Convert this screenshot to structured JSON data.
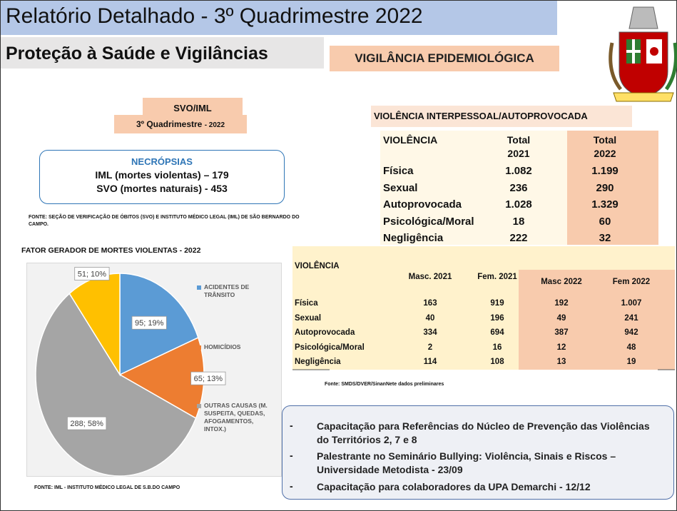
{
  "header": {
    "title": "Relatório Detalhado - 3º Quadrimestre 2022",
    "subtitle": "Proteção à Saúde e Vigilâncias",
    "section": "VIGILÂNCIA EPIDEMIOLÓGICA"
  },
  "svo": {
    "label": "SVO/IML",
    "period": "3º Quadrimestre",
    "year": "- 2022",
    "necropsias": {
      "title": "NECRÓPSIAS",
      "lines": [
        "IML  (mortes violentas) – 179",
        "SVO (mortes naturais) - 453"
      ]
    },
    "source": "FONTE: SEÇÃO DE VERIFICAÇÃO DE ÓBITOS (SVO) E INSTITUTO MÉDICO LEGAL (IML) DE SÃO BERNARDO DO CAMPO."
  },
  "chart_data": {
    "type": "pie",
    "title": "FATOR GERADOR DE MORTES VIOLENTAS - 2022",
    "categories": [
      "ACIDENTES DE TRÂNSITO",
      "HOMICÍDIOS",
      "OUTRAS CAUSAS (M. SUSPEITA, QUEDAS, AFOGAMENTOS, INTOX.)",
      null
    ],
    "values": [
      95,
      65,
      288,
      51
    ],
    "value_labels": [
      "95; 19%",
      "65; 13%",
      "288; 58%",
      "51; 10%"
    ],
    "colors": [
      "#5b9bd5",
      "#ed7d31",
      "#a5a5a5",
      "#ffc000"
    ],
    "source": "FONTE: IML - INSTITUTO MÉDICO LEGAL DE S.B.DO CAMPO"
  },
  "table1": {
    "title": "VIOLÊNCIA INTERPESSOAL/AUTOPROVOCADA",
    "headers": [
      "VIOLÊNCIA",
      [
        "Total",
        "2021"
      ],
      [
        "Total",
        "2022"
      ]
    ],
    "rows": [
      [
        "Física",
        "1.082",
        "1.199"
      ],
      [
        "Sexual",
        "236",
        "290"
      ],
      [
        "Autoprovocada",
        "1.028",
        "1.329"
      ],
      [
        "Psicológica/Moral",
        "18",
        "60"
      ],
      [
        "Negligência",
        "222",
        "32"
      ]
    ]
  },
  "table2": {
    "headers": [
      "VIOLÊNCIA",
      "Masc. 2021",
      "Fem.  2021",
      "Masc 2022",
      "Fem 2022"
    ],
    "rows": [
      [
        "Física",
        "163",
        "919",
        "192",
        "1.007"
      ],
      [
        "Sexual",
        "40",
        "196",
        "49",
        "241"
      ],
      [
        "Autoprovocada",
        "334",
        "694",
        "387",
        "942"
      ],
      [
        "Psicológica/Moral",
        "2",
        "16",
        "12",
        "48"
      ],
      [
        "Negligência",
        "114",
        "108",
        "13",
        "19"
      ]
    ],
    "source": "Fonte: SMDS/DVER/SinanNete dados preliminares"
  },
  "activities": [
    "Capacitação para Referências do Núcleo de Prevenção das Violências do Territórios 2, 7 e 8",
    "Palestrante no Seminário Bullying: Violência, Sinais e Riscos – Universidade Metodista - 23/09",
    "Capacitação para colaboradores da UPA Demarchi - 12/12"
  ]
}
